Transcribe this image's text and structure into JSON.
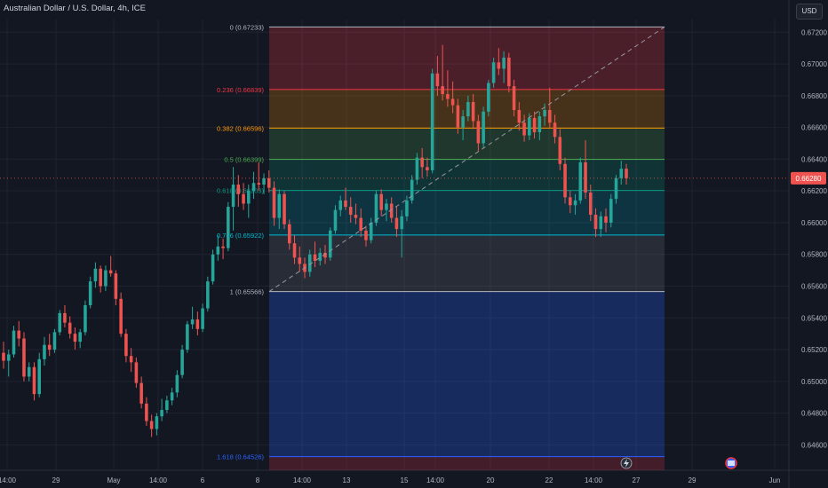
{
  "header": {
    "title": "Australian Dollar / U.S. Dollar, 4h, ICE",
    "currency": "USD"
  },
  "colors": {
    "background": "#131722",
    "up": "#26a69a",
    "down": "#ef5350",
    "grid": "#1f2330",
    "axis_text": "#b2b5be"
  },
  "icons": [
    "lightning-icon",
    "flag-icon"
  ],
  "chart_data": {
    "type": "candlestick",
    "title": "Australian Dollar / U.S. Dollar, 4h, ICE",
    "ylim": [
      0.6444,
      0.6728
    ],
    "y_ticks": [
      "0.67200",
      "0.67000",
      "0.66800",
      "0.66600",
      "0.66400",
      "0.66200",
      "0.66000",
      "0.65800",
      "0.65600",
      "0.65400",
      "0.65200",
      "0.65000",
      "0.64800",
      "0.64600"
    ],
    "x_ticks": [
      "14:00",
      "29",
      "May",
      "14:00",
      "6",
      "8",
      "14:00",
      "13",
      "15",
      "14:00",
      "20",
      "22",
      "14:00",
      "27",
      "29",
      "Jun"
    ],
    "current_price": 0.6628,
    "fibonacci": [
      {
        "ratio": "0",
        "price": 0.67233,
        "label": "0 (0.67233)",
        "color": "#b2b5be"
      },
      {
        "ratio": "0.236",
        "price": 0.66839,
        "label": "0.236 (0.66839)",
        "color": "#f23645"
      },
      {
        "ratio": "0.382",
        "price": 0.66596,
        "label": "0.382 (0.66596)",
        "color": "#ff9800"
      },
      {
        "ratio": "0.5",
        "price": 0.66399,
        "label": "0.5 (0.66399)",
        "color": "#4caf50"
      },
      {
        "ratio": "0.618",
        "price": 0.66203,
        "label": "0.618 (0.66203)",
        "color": "#089981"
      },
      {
        "ratio": "0.786",
        "price": 0.65922,
        "label": "0.786 (0.65922)",
        "color": "#00bcd4"
      },
      {
        "ratio": "1",
        "price": 0.65566,
        "label": "1 (0.65566)",
        "color": "#b2b5be"
      },
      {
        "ratio": "1.618",
        "price": 0.64526,
        "label": "1.618 (0.64526)",
        "color": "#2962ff"
      }
    ],
    "trend_line": {
      "from_price": 0.65566,
      "to_price": 0.67233
    },
    "candles": [
      [
        0.6518,
        0.6525,
        0.6508,
        0.6513
      ],
      [
        0.6513,
        0.652,
        0.6503,
        0.6517
      ],
      [
        0.6517,
        0.6535,
        0.6515,
        0.6532
      ],
      [
        0.6532,
        0.6538,
        0.6522,
        0.6527
      ],
      [
        0.6527,
        0.6531,
        0.65,
        0.6503
      ],
      [
        0.6503,
        0.6512,
        0.65,
        0.6509
      ],
      [
        0.6509,
        0.6512,
        0.6488,
        0.6492
      ],
      [
        0.6492,
        0.6518,
        0.649,
        0.6514
      ],
      [
        0.6514,
        0.6528,
        0.651,
        0.6523
      ],
      [
        0.6523,
        0.653,
        0.6516,
        0.652
      ],
      [
        0.652,
        0.6533,
        0.6518,
        0.6531
      ],
      [
        0.6531,
        0.6545,
        0.6529,
        0.6543
      ],
      [
        0.6543,
        0.6548,
        0.6534,
        0.6537
      ],
      [
        0.6537,
        0.6541,
        0.6527,
        0.653
      ],
      [
        0.653,
        0.6534,
        0.652,
        0.6525
      ],
      [
        0.6525,
        0.6533,
        0.6521,
        0.6531
      ],
      [
        0.6531,
        0.6551,
        0.6529,
        0.6548
      ],
      [
        0.6548,
        0.6566,
        0.6546,
        0.6563
      ],
      [
        0.6563,
        0.6575,
        0.6559,
        0.6571
      ],
      [
        0.6571,
        0.6573,
        0.6556,
        0.656
      ],
      [
        0.656,
        0.6573,
        0.6557,
        0.657
      ],
      [
        0.657,
        0.6579,
        0.6566,
        0.6568
      ],
      [
        0.6568,
        0.657,
        0.6548,
        0.6552
      ],
      [
        0.6552,
        0.6556,
        0.6528,
        0.653
      ],
      [
        0.653,
        0.6533,
        0.6512,
        0.6516
      ],
      [
        0.6516,
        0.6521,
        0.6506,
        0.6512
      ],
      [
        0.6512,
        0.6515,
        0.6496,
        0.6499
      ],
      [
        0.6499,
        0.6503,
        0.6483,
        0.6486
      ],
      [
        0.6486,
        0.649,
        0.6472,
        0.6475
      ],
      [
        0.6475,
        0.6479,
        0.6465,
        0.647
      ],
      [
        0.647,
        0.648,
        0.6466,
        0.6478
      ],
      [
        0.6478,
        0.6489,
        0.6475,
        0.6482
      ],
      [
        0.6482,
        0.6491,
        0.648,
        0.6488
      ],
      [
        0.6488,
        0.6496,
        0.6485,
        0.6493
      ],
      [
        0.6493,
        0.6507,
        0.649,
        0.6504
      ],
      [
        0.6504,
        0.6523,
        0.6502,
        0.652
      ],
      [
        0.652,
        0.6538,
        0.6518,
        0.6536
      ],
      [
        0.6536,
        0.6547,
        0.6533,
        0.6539
      ],
      [
        0.6539,
        0.6544,
        0.6529,
        0.6533
      ],
      [
        0.6533,
        0.6549,
        0.6531,
        0.6546
      ],
      [
        0.6546,
        0.6566,
        0.6544,
        0.6563
      ],
      [
        0.6563,
        0.6583,
        0.6561,
        0.658
      ],
      [
        0.658,
        0.6592,
        0.6576,
        0.6585
      ],
      [
        0.6585,
        0.659,
        0.6577,
        0.6584
      ],
      [
        0.6584,
        0.6613,
        0.6582,
        0.661
      ],
      [
        0.661,
        0.6635,
        0.6595,
        0.6624
      ],
      [
        0.6624,
        0.663,
        0.661,
        0.6618
      ],
      [
        0.6618,
        0.6625,
        0.6608,
        0.6612
      ],
      [
        0.6612,
        0.6624,
        0.6603,
        0.662
      ],
      [
        0.662,
        0.6632,
        0.6615,
        0.6625
      ],
      [
        0.6625,
        0.6638,
        0.662,
        0.6624
      ],
      [
        0.6624,
        0.6631,
        0.6618,
        0.6628
      ],
      [
        0.6628,
        0.6633,
        0.6619,
        0.6622
      ],
      [
        0.6622,
        0.6626,
        0.6598,
        0.6603
      ],
      [
        0.6603,
        0.6621,
        0.6596,
        0.6618
      ],
      [
        0.6618,
        0.662,
        0.6596,
        0.6599
      ],
      [
        0.6599,
        0.6602,
        0.6583,
        0.6587
      ],
      [
        0.6587,
        0.6592,
        0.6574,
        0.6578
      ],
      [
        0.6578,
        0.6585,
        0.6569,
        0.6574
      ],
      [
        0.6574,
        0.6578,
        0.6565,
        0.6569
      ],
      [
        0.6569,
        0.6583,
        0.6566,
        0.658
      ],
      [
        0.658,
        0.6588,
        0.6572,
        0.6576
      ],
      [
        0.6576,
        0.6584,
        0.6573,
        0.6581
      ],
      [
        0.6581,
        0.6586,
        0.6574,
        0.6578
      ],
      [
        0.6578,
        0.6597,
        0.6576,
        0.6595
      ],
      [
        0.6595,
        0.6611,
        0.6593,
        0.6608
      ],
      [
        0.6608,
        0.6617,
        0.6604,
        0.6614
      ],
      [
        0.6614,
        0.6622,
        0.6608,
        0.661
      ],
      [
        0.661,
        0.6616,
        0.66,
        0.6605
      ],
      [
        0.6605,
        0.6612,
        0.6599,
        0.6603
      ],
      [
        0.6603,
        0.6609,
        0.6591,
        0.6595
      ],
      [
        0.6595,
        0.6598,
        0.6585,
        0.6589
      ],
      [
        0.6589,
        0.6603,
        0.6587,
        0.66
      ],
      [
        0.66,
        0.662,
        0.6598,
        0.6618
      ],
      [
        0.6618,
        0.6621,
        0.6604,
        0.6608
      ],
      [
        0.6608,
        0.6615,
        0.6601,
        0.6612
      ],
      [
        0.6612,
        0.6616,
        0.66,
        0.6603
      ],
      [
        0.6603,
        0.661,
        0.6591,
        0.6596
      ],
      [
        0.6596,
        0.6608,
        0.6578,
        0.6604
      ],
      [
        0.6604,
        0.6617,
        0.6601,
        0.6614
      ],
      [
        0.6614,
        0.663,
        0.6612,
        0.6627
      ],
      [
        0.6627,
        0.6644,
        0.6624,
        0.6641
      ],
      [
        0.6641,
        0.6647,
        0.6628,
        0.6635
      ],
      [
        0.6635,
        0.6641,
        0.6629,
        0.6633
      ],
      [
        0.6633,
        0.6697,
        0.6631,
        0.6694
      ],
      [
        0.6694,
        0.6705,
        0.668,
        0.6686
      ],
      [
        0.6686,
        0.6712,
        0.6677,
        0.6681
      ],
      [
        0.6681,
        0.6696,
        0.6673,
        0.6678
      ],
      [
        0.6678,
        0.6689,
        0.6669,
        0.6674
      ],
      [
        0.6674,
        0.6678,
        0.6656,
        0.666
      ],
      [
        0.666,
        0.6671,
        0.6652,
        0.6667
      ],
      [
        0.6667,
        0.668,
        0.6664,
        0.6676
      ],
      [
        0.6676,
        0.6681,
        0.6659,
        0.6664
      ],
      [
        0.6664,
        0.6668,
        0.6645,
        0.665
      ],
      [
        0.665,
        0.6673,
        0.6647,
        0.667
      ],
      [
        0.667,
        0.669,
        0.6667,
        0.6688
      ],
      [
        0.6688,
        0.6704,
        0.6685,
        0.6701
      ],
      [
        0.6701,
        0.671,
        0.6693,
        0.6697
      ],
      [
        0.6697,
        0.6708,
        0.6688,
        0.6704
      ],
      [
        0.6704,
        0.6707,
        0.6682,
        0.6686
      ],
      [
        0.6686,
        0.669,
        0.6667,
        0.6671
      ],
      [
        0.6671,
        0.6676,
        0.6658,
        0.6663
      ],
      [
        0.6663,
        0.6668,
        0.6651,
        0.6655
      ],
      [
        0.6655,
        0.6669,
        0.6652,
        0.6666
      ],
      [
        0.6666,
        0.667,
        0.6653,
        0.6657
      ],
      [
        0.6657,
        0.667,
        0.6652,
        0.6667
      ],
      [
        0.6667,
        0.6675,
        0.6661,
        0.6671
      ],
      [
        0.6671,
        0.6685,
        0.666,
        0.6663
      ],
      [
        0.6663,
        0.6668,
        0.665,
        0.6654
      ],
      [
        0.6654,
        0.6659,
        0.6633,
        0.6637
      ],
      [
        0.6637,
        0.6641,
        0.6612,
        0.6616
      ],
      [
        0.6616,
        0.662,
        0.6606,
        0.6611
      ],
      [
        0.6611,
        0.6618,
        0.6605,
        0.6614
      ],
      [
        0.6614,
        0.6641,
        0.6612,
        0.6638
      ],
      [
        0.6638,
        0.6652,
        0.6615,
        0.6619
      ],
      [
        0.6619,
        0.6624,
        0.6601,
        0.6605
      ],
      [
        0.6605,
        0.6609,
        0.6591,
        0.6596
      ],
      [
        0.6596,
        0.6607,
        0.6591,
        0.6604
      ],
      [
        0.6604,
        0.6609,
        0.6594,
        0.66
      ],
      [
        0.66,
        0.6618,
        0.6597,
        0.6615
      ],
      [
        0.6615,
        0.663,
        0.6612,
        0.6628
      ],
      [
        0.6628,
        0.6639,
        0.6624,
        0.6634
      ],
      [
        0.6634,
        0.6637,
        0.6624,
        0.6628
      ]
    ]
  }
}
